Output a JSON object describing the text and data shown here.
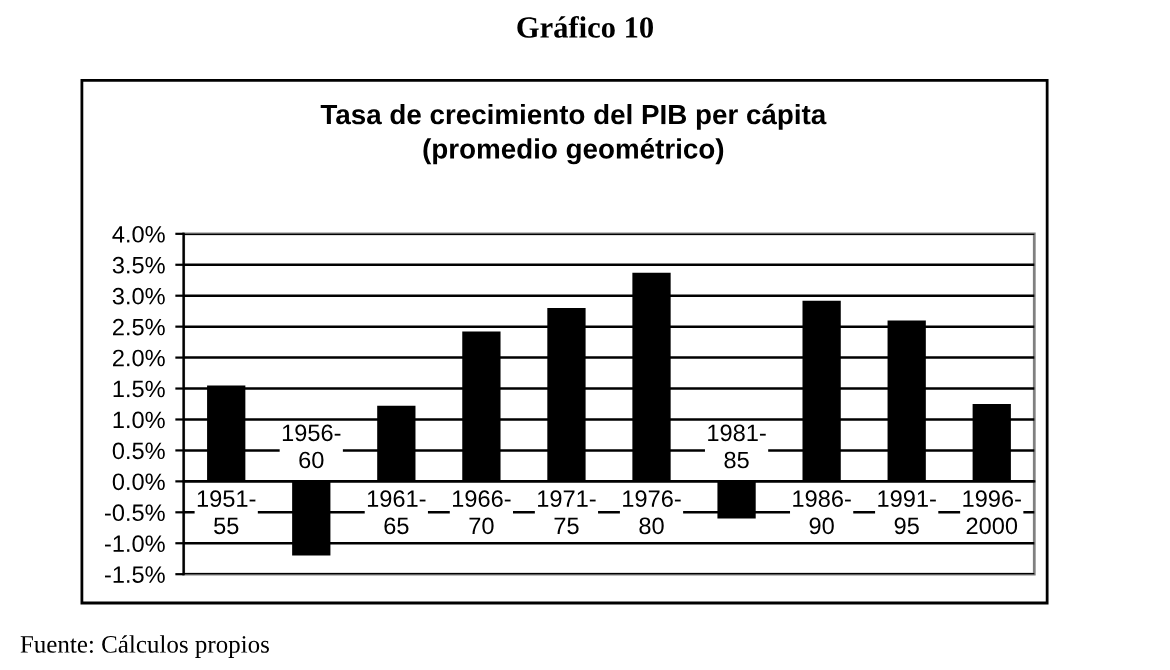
{
  "chart_data": {
    "type": "bar",
    "title": "Gráfico 10",
    "subtitle": "Tasa de crecimiento del PIB per cápita\n(promedio geométrico)",
    "categories": [
      "1951-\n55",
      "1956-\n60",
      "1961-\n65",
      "1966-\n70",
      "1971-\n75",
      "1976-\n80",
      "1981-\n85",
      "1986-\n90",
      "1991-\n95",
      "1996-\n2000"
    ],
    "values": [
      1.55,
      -1.2,
      1.22,
      2.42,
      2.8,
      3.37,
      -0.6,
      2.92,
      2.6,
      1.25
    ],
    "color": "#000000",
    "ylim": [
      -1.5,
      4.0
    ],
    "yticks": [
      {
        "value": -1.5,
        "label": "-1.5%"
      },
      {
        "value": -1.0,
        "label": "-1.0%"
      },
      {
        "value": -0.5,
        "label": "-0.5%"
      },
      {
        "value": 0.0,
        "label": "0.0%"
      },
      {
        "value": 0.5,
        "label": "0.5%"
      },
      {
        "value": 1.0,
        "label": "1.0%"
      },
      {
        "value": 1.5,
        "label": "1.5%"
      },
      {
        "value": 2.0,
        "label": "2.0%"
      },
      {
        "value": 2.5,
        "label": "2.5%"
      },
      {
        "value": 3.0,
        "label": "3.0%"
      },
      {
        "value": 3.5,
        "label": "3.5%"
      },
      {
        "value": 4.0,
        "label": "4.0%"
      }
    ],
    "grid": "y",
    "legend": false,
    "annotations": [
      "Fuente: Cálculos propios"
    ]
  }
}
